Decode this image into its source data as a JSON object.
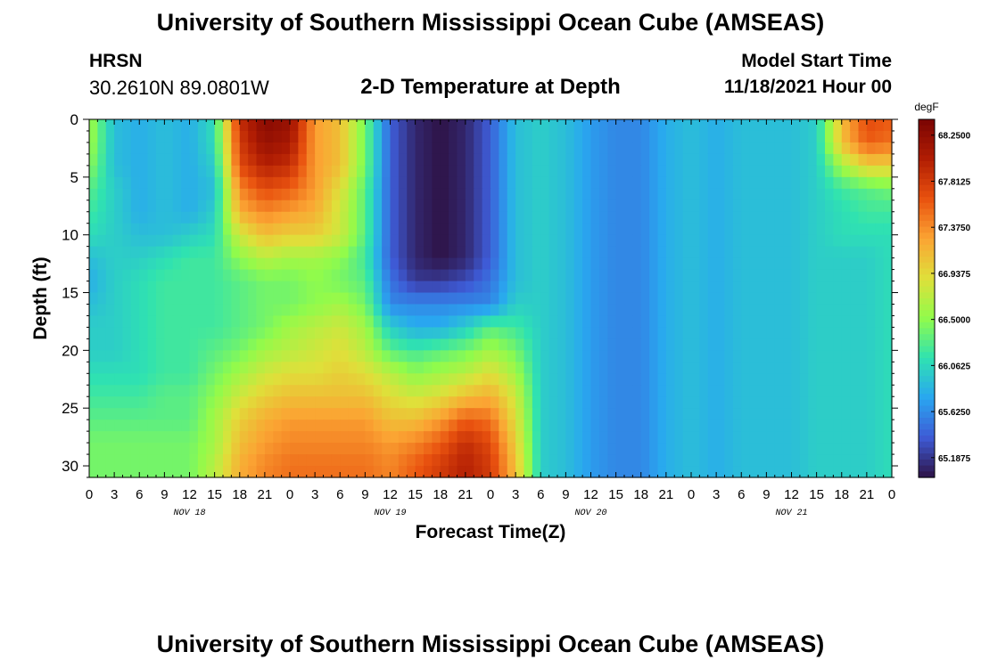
{
  "header": {
    "title": "University of Southern Mississippi Ocean Cube (AMSEAS)",
    "station": "HRSN",
    "coordinates": "30.2610N  89.0801W",
    "subtitle": "2-D Temperature at Depth",
    "model_start_label": "Model Start Time",
    "model_start_value": "11/18/2021 Hour 00"
  },
  "footer": {
    "title": "University of Southern Mississippi Ocean Cube (AMSEAS)"
  },
  "chart_data": {
    "type": "heatmap",
    "title": "2-D Temperature at Depth",
    "xlabel": "Forecast Time(Z)",
    "ylabel": "Depth (ft)",
    "x_unit": "hours from 11/18/2021 00Z",
    "xlim": [
      0,
      96
    ],
    "ylim": [
      31,
      0
    ],
    "x_ticks": [
      0,
      3,
      6,
      9,
      12,
      15,
      18,
      21,
      24,
      27,
      30,
      33,
      36,
      39,
      42,
      45,
      48,
      51,
      54,
      57,
      60,
      63,
      66,
      69,
      72,
      75,
      78,
      81,
      84,
      87,
      90,
      93,
      96
    ],
    "x_tick_labels": [
      "0",
      "3",
      "6",
      "9",
      "12",
      "15",
      "18",
      "21",
      "0",
      "3",
      "6",
      "9",
      "12",
      "15",
      "18",
      "21",
      "0",
      "3",
      "6",
      "9",
      "12",
      "15",
      "18",
      "21",
      "0",
      "3",
      "6",
      "9",
      "12",
      "15",
      "18",
      "21",
      "0"
    ],
    "y_ticks": [
      0,
      5,
      10,
      15,
      20,
      25,
      30
    ],
    "y_tick_labels": [
      "0",
      "5",
      "10",
      "15",
      "20",
      "25",
      "30"
    ],
    "date_labels": [
      {
        "hour": 12,
        "text": "NOV 18"
      },
      {
        "hour": 36,
        "text": "NOV 19"
      },
      {
        "hour": 60,
        "text": "NOV 20"
      },
      {
        "hour": 84,
        "text": "NOV 21"
      }
    ],
    "colorbar": {
      "unit": "degF",
      "min": 65.0,
      "max": 68.4,
      "tick_values": [
        68.25,
        67.8125,
        67.375,
        66.9375,
        66.5,
        66.0625,
        65.625,
        65.1875
      ],
      "tick_labels": [
        "68.2500",
        "67.8125",
        "67.3750",
        "66.9375",
        "66.5000",
        "66.0625",
        "65.6250",
        "65.1875"
      ],
      "colors": [
        "#2e1347",
        "#3e5bd6",
        "#29a7f0",
        "#2fe2b1",
        "#91fb4b",
        "#dfe03a",
        "#fba433",
        "#e9520f",
        "#b11d03",
        "#7a0403"
      ]
    },
    "depth_rows_ft": [
      0,
      2,
      4,
      6,
      8,
      10,
      12,
      14,
      16,
      18,
      20,
      22,
      24,
      26,
      28,
      30
    ],
    "column_hours": [
      0,
      3,
      6,
      9,
      12,
      15,
      18,
      21,
      24,
      27,
      30,
      33,
      36,
      39,
      42,
      45,
      48,
      51,
      54,
      57,
      60,
      63,
      66,
      69,
      72,
      75,
      78,
      81,
      84,
      87,
      90,
      93,
      96
    ],
    "values_degF": [
      [
        66.6,
        65.9,
        65.8,
        65.9,
        65.8,
        66.1,
        67.9,
        68.3,
        68.2,
        67.3,
        67.1,
        66.4,
        65.4,
        65.1,
        65.0,
        65.1,
        65.4,
        65.9,
        66.0,
        65.9,
        65.7,
        65.6,
        65.6,
        65.8,
        65.9,
        65.8,
        65.9,
        65.9,
        65.9,
        66.0,
        67.1,
        67.7,
        67.6
      ],
      [
        66.6,
        65.9,
        65.8,
        65.9,
        65.8,
        66.1,
        67.8,
        68.2,
        68.1,
        67.3,
        67.1,
        66.4,
        65.4,
        65.1,
        65.0,
        65.1,
        65.4,
        65.9,
        66.0,
        65.9,
        65.7,
        65.6,
        65.6,
        65.8,
        65.9,
        65.8,
        65.9,
        65.9,
        65.9,
        66.0,
        67.1,
        67.6,
        67.5
      ],
      [
        66.5,
        65.9,
        65.8,
        65.9,
        65.8,
        66.0,
        67.7,
        68.0,
        67.9,
        67.3,
        67.1,
        66.4,
        65.4,
        65.1,
        65.0,
        65.1,
        65.4,
        65.9,
        66.0,
        65.9,
        65.7,
        65.6,
        65.6,
        65.8,
        65.9,
        65.8,
        65.9,
        65.9,
        65.9,
        66.0,
        66.6,
        67.0,
        67.0
      ],
      [
        66.3,
        66.0,
        65.8,
        65.9,
        65.8,
        65.9,
        67.4,
        67.7,
        67.6,
        67.3,
        66.9,
        66.3,
        65.4,
        65.1,
        65.0,
        65.1,
        65.4,
        65.9,
        66.0,
        65.9,
        65.7,
        65.6,
        65.6,
        65.8,
        65.9,
        65.8,
        65.9,
        65.9,
        65.9,
        66.0,
        66.2,
        66.3,
        66.4
      ],
      [
        66.2,
        66.0,
        65.8,
        65.9,
        65.8,
        66.0,
        67.2,
        67.4,
        67.3,
        67.2,
        66.8,
        66.3,
        65.4,
        65.1,
        65.0,
        65.1,
        65.4,
        65.9,
        66.0,
        65.9,
        65.7,
        65.6,
        65.6,
        65.8,
        65.9,
        65.8,
        65.9,
        65.9,
        65.9,
        66.0,
        66.1,
        66.2,
        66.2
      ],
      [
        66.1,
        66.0,
        65.9,
        65.9,
        66.0,
        66.1,
        66.8,
        67.1,
        67.0,
        67.0,
        66.8,
        66.3,
        65.4,
        65.1,
        65.0,
        65.1,
        65.4,
        65.9,
        66.0,
        65.9,
        65.7,
        65.6,
        65.6,
        65.8,
        65.9,
        65.8,
        65.9,
        65.9,
        65.9,
        66.0,
        66.1,
        66.1,
        66.1
      ],
      [
        65.9,
        66.0,
        66.0,
        66.1,
        66.2,
        66.2,
        66.5,
        66.7,
        66.6,
        66.6,
        66.5,
        66.2,
        65.4,
        65.1,
        65.0,
        65.1,
        65.4,
        65.9,
        66.0,
        65.9,
        65.7,
        65.6,
        65.6,
        65.8,
        65.9,
        65.8,
        65.9,
        65.9,
        65.9,
        66.0,
        66.0,
        66.0,
        66.1
      ],
      [
        65.8,
        66.0,
        66.1,
        66.2,
        66.2,
        66.2,
        66.3,
        66.4,
        66.4,
        66.5,
        66.4,
        66.3,
        65.5,
        65.2,
        65.2,
        65.3,
        65.5,
        65.9,
        66.0,
        65.9,
        65.7,
        65.6,
        65.6,
        65.8,
        65.9,
        65.8,
        65.9,
        65.9,
        65.9,
        66.0,
        66.0,
        66.0,
        66.1
      ],
      [
        65.9,
        66.0,
        66.1,
        66.2,
        66.2,
        66.2,
        66.3,
        66.4,
        66.4,
        66.5,
        66.6,
        66.4,
        65.6,
        65.6,
        65.6,
        65.6,
        65.6,
        66.0,
        66.0,
        65.9,
        65.7,
        65.6,
        65.6,
        65.8,
        65.9,
        65.8,
        65.9,
        65.9,
        65.9,
        66.0,
        66.0,
        66.0,
        66.1
      ],
      [
        66.0,
        66.0,
        66.1,
        66.2,
        66.2,
        66.2,
        66.3,
        66.4,
        66.6,
        66.7,
        66.8,
        66.6,
        66.0,
        65.8,
        65.8,
        66.0,
        66.3,
        66.2,
        66.0,
        65.9,
        65.7,
        65.6,
        65.6,
        65.8,
        65.9,
        65.8,
        65.9,
        65.9,
        65.9,
        66.0,
        66.0,
        66.0,
        66.1
      ],
      [
        66.0,
        66.0,
        66.1,
        66.2,
        66.2,
        66.3,
        66.4,
        66.6,
        66.7,
        66.8,
        66.9,
        66.7,
        66.3,
        66.2,
        66.3,
        66.4,
        66.6,
        66.4,
        66.0,
        65.9,
        65.7,
        65.6,
        65.6,
        65.8,
        65.9,
        65.8,
        65.9,
        65.9,
        65.9,
        66.0,
        66.0,
        66.0,
        66.1
      ],
      [
        66.1,
        66.1,
        66.1,
        66.2,
        66.2,
        66.4,
        66.6,
        66.8,
        66.9,
        66.9,
        67.0,
        66.9,
        66.7,
        66.5,
        66.6,
        66.7,
        66.9,
        66.6,
        66.0,
        65.9,
        65.7,
        65.6,
        65.6,
        65.8,
        65.9,
        65.8,
        65.9,
        65.9,
        65.9,
        66.0,
        66.0,
        66.0,
        66.1
      ],
      [
        66.2,
        66.2,
        66.2,
        66.3,
        66.3,
        66.5,
        66.8,
        67.0,
        67.1,
        67.1,
        67.1,
        67.1,
        66.9,
        66.8,
        66.9,
        67.1,
        67.2,
        66.8,
        66.0,
        65.9,
        65.7,
        65.6,
        65.6,
        65.8,
        65.9,
        65.8,
        65.9,
        65.9,
        65.9,
        66.0,
        66.0,
        66.0,
        66.1
      ],
      [
        66.3,
        66.3,
        66.3,
        66.3,
        66.3,
        66.6,
        67.0,
        67.2,
        67.3,
        67.3,
        67.3,
        67.3,
        67.1,
        67.1,
        67.3,
        67.6,
        67.5,
        66.9,
        66.0,
        65.9,
        65.7,
        65.6,
        65.6,
        65.8,
        65.9,
        65.8,
        65.9,
        65.9,
        65.9,
        66.0,
        66.0,
        66.0,
        66.1
      ],
      [
        66.4,
        66.4,
        66.4,
        66.4,
        66.4,
        66.6,
        67.1,
        67.3,
        67.4,
        67.4,
        67.4,
        67.4,
        67.3,
        67.4,
        67.6,
        67.9,
        67.7,
        67.0,
        66.0,
        65.9,
        65.7,
        65.6,
        65.6,
        65.8,
        65.9,
        65.8,
        65.9,
        65.9,
        65.9,
        66.0,
        66.0,
        66.0,
        66.1
      ],
      [
        66.4,
        66.4,
        66.4,
        66.4,
        66.4,
        66.7,
        67.2,
        67.4,
        67.5,
        67.5,
        67.5,
        67.5,
        67.4,
        67.6,
        67.8,
        68.0,
        67.8,
        67.1,
        66.0,
        65.9,
        65.7,
        65.6,
        65.6,
        65.8,
        65.9,
        65.8,
        65.9,
        65.9,
        65.9,
        66.0,
        66.0,
        66.0,
        66.1
      ]
    ]
  }
}
